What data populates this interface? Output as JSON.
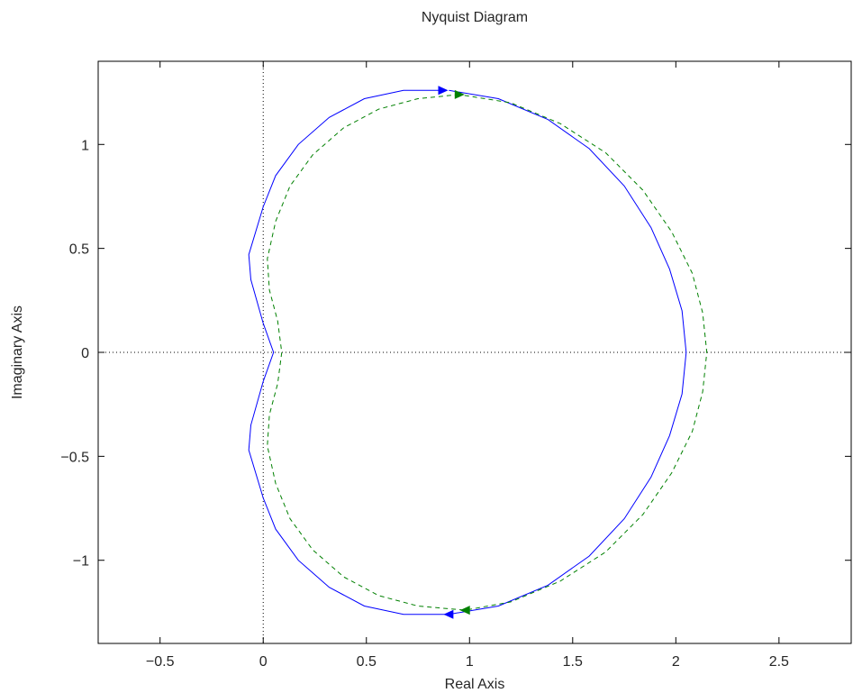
{
  "chart_data": {
    "type": "line",
    "title": "Nyquist Diagram",
    "xlabel": "Real Axis",
    "ylabel": "Imaginary Axis",
    "xlim": [
      -0.8,
      2.85
    ],
    "ylim": [
      -1.4,
      1.4
    ],
    "xticks": [
      -0.5,
      0,
      0.5,
      1,
      1.5,
      2,
      2.5
    ],
    "xtick_labels": [
      "−0.5",
      "0",
      "0.5",
      "1",
      "1.5",
      "2",
      "2.5"
    ],
    "yticks": [
      -1,
      -0.5,
      0,
      0.5,
      1
    ],
    "ytick_labels": [
      "−1",
      "−0.5",
      "0",
      "0.5",
      "1"
    ],
    "grid": false,
    "zero_lines": true,
    "series": [
      {
        "style": "solid",
        "color": "#0000ff",
        "points": [
          [
            0.87,
            1.26
          ],
          [
            0.68,
            1.26
          ],
          [
            0.49,
            1.22
          ],
          [
            0.32,
            1.13
          ],
          [
            0.17,
            1.0
          ],
          [
            0.06,
            0.85
          ],
          [
            0.0,
            0.7
          ],
          [
            -0.07,
            0.47
          ],
          [
            -0.06,
            0.35
          ],
          [
            0.0,
            0.14
          ],
          [
            0.05,
            0.0
          ],
          [
            0.0,
            -0.14
          ],
          [
            -0.06,
            -0.35
          ],
          [
            -0.07,
            -0.47
          ],
          [
            0.0,
            -0.7
          ],
          [
            0.06,
            -0.85
          ],
          [
            0.17,
            -1.0
          ],
          [
            0.32,
            -1.13
          ],
          [
            0.49,
            -1.22
          ],
          [
            0.68,
            -1.26
          ],
          [
            0.9,
            -1.26
          ],
          [
            1.14,
            -1.22
          ],
          [
            1.38,
            -1.12
          ],
          [
            1.58,
            -0.98
          ],
          [
            1.75,
            -0.8
          ],
          [
            1.88,
            -0.6
          ],
          [
            1.97,
            -0.4
          ],
          [
            2.03,
            -0.2
          ],
          [
            2.05,
            0.0
          ],
          [
            2.03,
            0.2
          ],
          [
            1.97,
            0.4
          ],
          [
            1.88,
            0.6
          ],
          [
            1.75,
            0.8
          ],
          [
            1.58,
            0.98
          ],
          [
            1.38,
            1.12
          ],
          [
            1.14,
            1.22
          ],
          [
            0.9,
            1.26
          ]
        ],
        "arrows": [
          {
            "at": [
              0.87,
              1.26
            ],
            "direction": "right"
          },
          {
            "at": [
              0.9,
              -1.26
            ],
            "direction": "left"
          }
        ]
      },
      {
        "style": "dashed",
        "color": "#008000",
        "points": [
          [
            0.95,
            1.24
          ],
          [
            0.75,
            1.22
          ],
          [
            0.56,
            1.17
          ],
          [
            0.39,
            1.08
          ],
          [
            0.24,
            0.95
          ],
          [
            0.13,
            0.8
          ],
          [
            0.06,
            0.63
          ],
          [
            0.02,
            0.45
          ],
          [
            0.03,
            0.3
          ],
          [
            0.07,
            0.15
          ],
          [
            0.09,
            0.0
          ],
          [
            0.07,
            -0.15
          ],
          [
            0.03,
            -0.3
          ],
          [
            0.02,
            -0.45
          ],
          [
            0.06,
            -0.63
          ],
          [
            0.13,
            -0.8
          ],
          [
            0.24,
            -0.95
          ],
          [
            0.39,
            -1.08
          ],
          [
            0.56,
            -1.17
          ],
          [
            0.75,
            -1.22
          ],
          [
            0.98,
            -1.24
          ],
          [
            1.2,
            -1.2
          ],
          [
            1.44,
            -1.1
          ],
          [
            1.66,
            -0.96
          ],
          [
            1.84,
            -0.78
          ],
          [
            1.98,
            -0.58
          ],
          [
            2.08,
            -0.38
          ],
          [
            2.13,
            -0.19
          ],
          [
            2.15,
            0.0
          ],
          [
            2.13,
            0.19
          ],
          [
            2.08,
            0.38
          ],
          [
            1.98,
            0.58
          ],
          [
            1.84,
            0.78
          ],
          [
            1.66,
            0.96
          ],
          [
            1.44,
            1.1
          ],
          [
            1.2,
            1.2
          ],
          [
            0.95,
            1.24
          ]
        ],
        "arrows": [
          {
            "at": [
              0.95,
              1.24
            ],
            "direction": "right"
          },
          {
            "at": [
              0.98,
              -1.24
            ],
            "direction": "left"
          }
        ]
      }
    ]
  }
}
